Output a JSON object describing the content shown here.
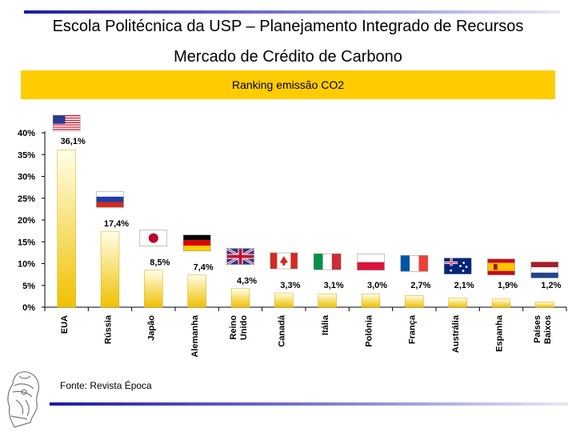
{
  "header": {
    "title": "Escola Politécnica da USP – Planejamento Integrado de Recursos",
    "subtitle": "Mercado de Crédito de Carbono",
    "banner": "Ranking emissão CO2"
  },
  "source": "Fonte: Revista Época",
  "colors": {
    "accent_line": "#1a1aa8",
    "banner": "#ffcc00",
    "bar_top": "#ffffe0",
    "bar_bottom": "#f0c000"
  },
  "chart_data": {
    "type": "bar",
    "title": "Ranking emissão CO2",
    "categories": [
      "EUA",
      "Rússia",
      "Japão",
      "Alemanha",
      "Reino Unido",
      "Canadá",
      "Itália",
      "Polônia",
      "França",
      "Austrália",
      "Espanha",
      "Países Baixos"
    ],
    "values": [
      36.1,
      17.4,
      8.5,
      7.4,
      4.3,
      3.3,
      3.1,
      3.0,
      2.7,
      2.1,
      1.9,
      1.2
    ],
    "data_labels": [
      "36,1%",
      "17,4%",
      "8,5%",
      "7,4%",
      "4,3%",
      "3,3%",
      "3,1%",
      "3,0%",
      "2,7%",
      "2,1%",
      "1,9%",
      "1,2%"
    ],
    "flags": [
      "usa-flag-icon",
      "russia-flag-icon",
      "japan-flag-icon",
      "germany-flag-icon",
      "uk-flag-icon",
      "canada-flag-icon",
      "italy-flag-icon",
      "poland-flag-icon",
      "france-flag-icon",
      "australia-flag-icon",
      "spain-flag-icon",
      "netherlands-flag-icon"
    ],
    "yticks": [
      "0%",
      "5%",
      "10%",
      "15%",
      "20%",
      "25%",
      "30%",
      "35%",
      "40%"
    ],
    "ylim": [
      0,
      40
    ],
    "grid": false,
    "legend": "none"
  }
}
